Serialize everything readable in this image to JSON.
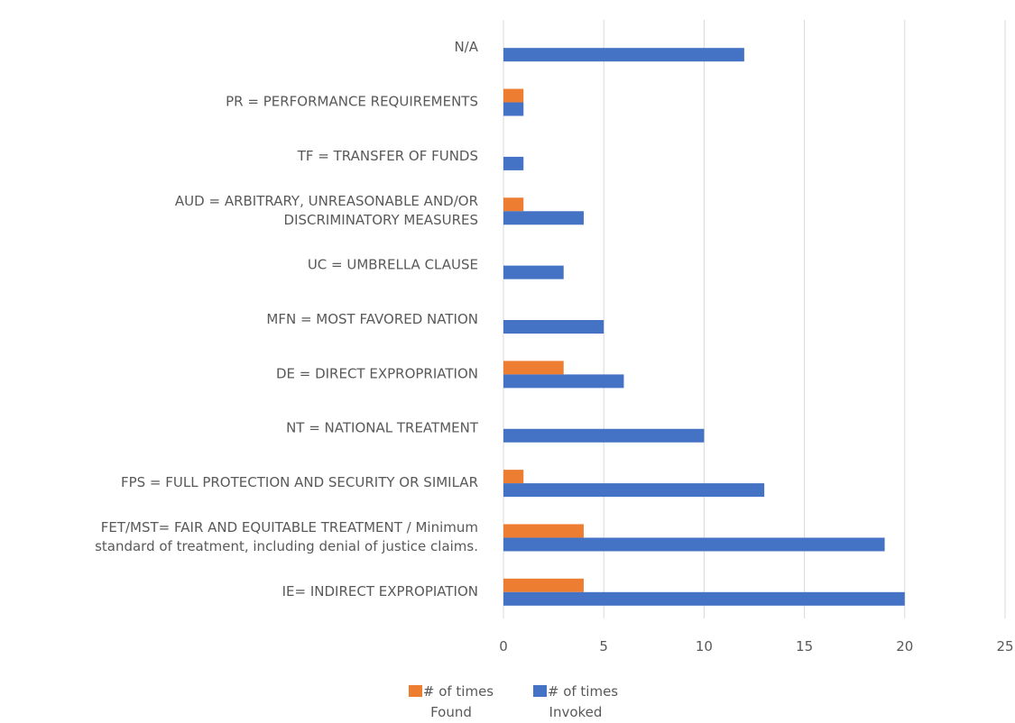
{
  "chart_data": {
    "type": "bar",
    "orientation": "horizontal",
    "categories": [
      [
        "N/A"
      ],
      [
        "PR = PERFORMANCE  REQUIREMENTS"
      ],
      [
        "TF = TRANSFER  OF FUNDS"
      ],
      [
        "AUD = ARBITRARY,  UNREASONABLE AND/OR",
        "DISCRIMINATORY  MEASURES"
      ],
      [
        "UC = UMBRELLA  CLAUSE"
      ],
      [
        "MFN = MOST FAVORED NATION"
      ],
      [
        "DE = DIRECT  EXPROPRIATION"
      ],
      [
        "NT = NATIONAL  TREATMENT"
      ],
      [
        "FPS = FULL PROTECTION  AND SECURITY  OR SIMILAR"
      ],
      [
        "FET/MST= FAIR AND EQUITABLE  TREATMENT  / Minimum",
        "standard of treatment,  including denial of justice claims."
      ],
      [
        "IE= INDIRECT  EXPROPIATION"
      ]
    ],
    "series": [
      {
        "name": [
          "# of times",
          "Found"
        ],
        "color": "#ED7D31",
        "values": [
          0,
          1,
          0,
          1,
          0,
          0,
          3,
          0,
          1,
          4,
          4
        ]
      },
      {
        "name": [
          "# of times",
          "Invoked"
        ],
        "color": "#4472C4",
        "values": [
          12,
          1,
          1,
          4,
          3,
          5,
          6,
          10,
          13,
          19,
          20
        ]
      }
    ],
    "xlim": [
      0,
      25
    ],
    "xticks": [
      0,
      5,
      10,
      15,
      20,
      25
    ],
    "grid": true,
    "legend": "bottom",
    "title": "",
    "xlabel": "",
    "ylabel": ""
  }
}
